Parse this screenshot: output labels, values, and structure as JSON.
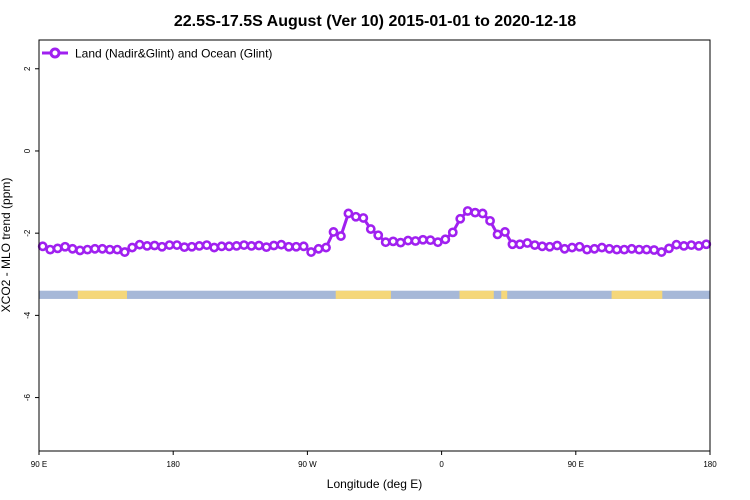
{
  "chart_data": {
    "type": "line",
    "title": "22.5S-17.5S August (Ver 10)   2015-01-01 to 2020-12-18",
    "xlabel": "Longitude (deg E)",
    "ylabel": "XCO2 - MLO trend (ppm)",
    "xlim": [
      90,
      540
    ],
    "ylim": [
      -7.3,
      2.7
    ],
    "x_ticks": [
      {
        "value": 90,
        "label": "90 E"
      },
      {
        "value": 180,
        "label": "180"
      },
      {
        "value": 270,
        "label": "90 W"
      },
      {
        "value": 360,
        "label": "0"
      },
      {
        "value": 450,
        "label": "90 E"
      },
      {
        "value": 540,
        "label": "180"
      }
    ],
    "y_ticks": [
      {
        "value": 2,
        "label": "2"
      },
      {
        "value": 0,
        "label": "0"
      },
      {
        "value": -2,
        "label": "-2"
      },
      {
        "value": -4,
        "label": "-4"
      },
      {
        "value": -6,
        "label": "-6"
      }
    ],
    "grid": false,
    "legend": {
      "position": "top-left"
    },
    "series": [
      {
        "name": "Land (Nadir&Glint) and Ocean (Glint)",
        "color": "#a020f0",
        "x": [
          92.5,
          97.5,
          102.5,
          107.5,
          112.5,
          117.5,
          122.5,
          127.5,
          132.5,
          137.5,
          142.5,
          147.5,
          152.5,
          157.5,
          162.5,
          167.5,
          172.5,
          177.5,
          182.5,
          187.5,
          192.5,
          197.5,
          202.5,
          207.5,
          212.5,
          217.5,
          222.5,
          227.5,
          232.5,
          237.5,
          242.5,
          247.5,
          252.5,
          257.5,
          262.5,
          267.5,
          272.5,
          277.5,
          282.5,
          287.5,
          292.5,
          297.5,
          302.5,
          307.5,
          312.5,
          317.5,
          322.5,
          327.5,
          332.5,
          337.5,
          342.5,
          347.5,
          352.5,
          357.5,
          362.5,
          367.5,
          372.5,
          377.5,
          382.5,
          387.5,
          392.5,
          397.5,
          402.5,
          407.5,
          412.5,
          417.5,
          422.5,
          427.5,
          432.5,
          437.5,
          442.5,
          447.5,
          452.5,
          457.5,
          462.5,
          467.5,
          472.5,
          477.5,
          482.5,
          487.5,
          492.5,
          497.5,
          502.5,
          507.5,
          512.5,
          517.5,
          522.5,
          527.5,
          532.5,
          537.5
        ],
        "y": [
          -2.32,
          -2.4,
          -2.37,
          -2.33,
          -2.38,
          -2.42,
          -2.4,
          -2.38,
          -2.38,
          -2.4,
          -2.4,
          -2.46,
          -2.35,
          -2.28,
          -2.31,
          -2.3,
          -2.33,
          -2.29,
          -2.29,
          -2.34,
          -2.33,
          -2.31,
          -2.29,
          -2.35,
          -2.32,
          -2.32,
          -2.31,
          -2.29,
          -2.31,
          -2.3,
          -2.34,
          -2.3,
          -2.28,
          -2.33,
          -2.33,
          -2.32,
          -2.46,
          -2.38,
          -2.35,
          -1.97,
          -2.07,
          -1.52,
          -1.6,
          -1.63,
          -1.9,
          -2.05,
          -2.22,
          -2.2,
          -2.23,
          -2.18,
          -2.19,
          -2.16,
          -2.17,
          -2.22,
          -2.15,
          -1.98,
          -1.65,
          -1.46,
          -1.5,
          -1.52,
          -1.7,
          -2.03,
          -1.97,
          -2.27,
          -2.27,
          -2.24,
          -2.29,
          -2.32,
          -2.33,
          -2.3,
          -2.38,
          -2.35,
          -2.33,
          -2.4,
          -2.38,
          -2.35,
          -2.38,
          -2.4,
          -2.4,
          -2.38,
          -2.4,
          -2.4,
          -2.41,
          -2.46,
          -2.37,
          -2.28,
          -2.31,
          -2.29,
          -2.31,
          -2.27
        ]
      }
    ],
    "surface_band": {
      "y_top": -3.4,
      "y_bottom": -3.6,
      "ocean_color": "#a6b8d8",
      "land_color": "#f5d77a",
      "land_segments": [
        [
          116,
          149
        ],
        [
          289,
          326
        ],
        [
          372,
          395
        ],
        [
          400,
          404
        ],
        [
          474,
          508
        ]
      ]
    }
  }
}
